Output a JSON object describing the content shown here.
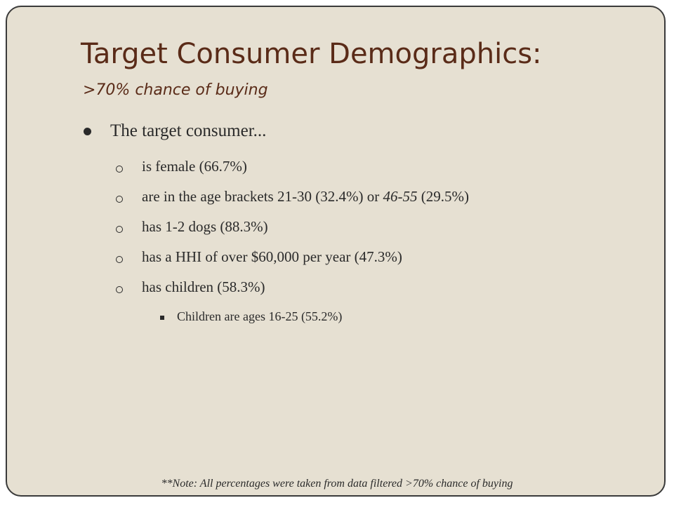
{
  "header": {
    "title": "Target Consumer Demographics:",
    "subtitle": ">70% chance of buying"
  },
  "body": {
    "lead": "The target consumer...",
    "items": [
      {
        "parts": [
          "is female (66.7%)"
        ]
      },
      {
        "parts": [
          "are in the age brackets 21-30 (32.4%) or ",
          "46-55",
          " (29.5%)"
        ]
      },
      {
        "parts": [
          "has 1-2 dogs (88.3%)"
        ]
      },
      {
        "parts": [
          "has a HHI of over $60,000 per year (47.3%)"
        ]
      },
      {
        "parts": [
          "has children (58.3%)"
        ]
      }
    ],
    "subitem": "Children are ages 16-25 (55.2%)"
  },
  "footer": {
    "note": "**Note: All percentages were taken from data filtered >70% chance of buying"
  }
}
